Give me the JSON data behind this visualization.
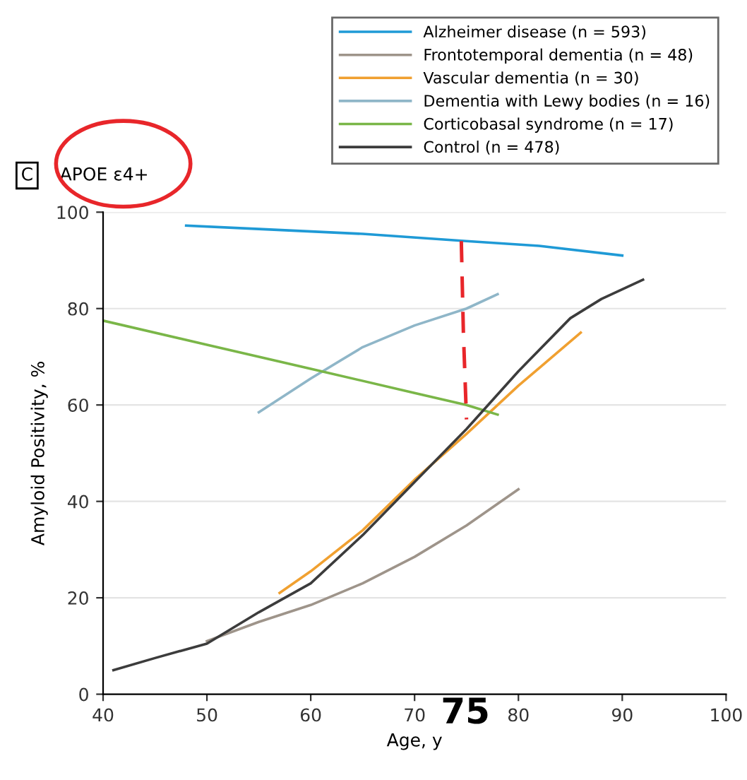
{
  "chart_data": {
    "type": "line",
    "title": "APOE ε4+",
    "xlabel": "Age, y",
    "ylabel": "Amyloid Positivity, %",
    "xlim": [
      40,
      100
    ],
    "xticks": [
      40,
      50,
      60,
      70,
      80,
      90,
      100
    ],
    "ylim": [
      0,
      100
    ],
    "yticks": [
      0,
      20,
      40,
      60,
      80,
      100
    ],
    "grid": "y",
    "legend": "top right",
    "line_style": "solid",
    "marker": "none",
    "annotations": [
      "C",
      "75"
    ],
    "series": [
      {
        "name": "Alzheimer disease (n = 593)",
        "color": "#1f9ad6",
        "x": [
          48,
          55,
          65,
          75,
          82,
          90
        ],
        "values": [
          97.2,
          96.5,
          95.5,
          94,
          93,
          91
        ]
      },
      {
        "name": "Frontotemporal dementia (n = 48)",
        "color": "#9e948a",
        "x": [
          50,
          55,
          60,
          65,
          70,
          75,
          80
        ],
        "values": [
          11,
          15,
          18.5,
          23,
          28.5,
          35,
          42.5
        ]
      },
      {
        "name": "Vascular dementia (n = 30)",
        "color": "#f0a030",
        "x": [
          57,
          60,
          65,
          70,
          75,
          80,
          86
        ],
        "values": [
          21,
          25.5,
          34,
          44.5,
          54,
          64,
          75
        ]
      },
      {
        "name": "Dementia with Lewy bodies (n = 16)",
        "color": "#8fb6c8",
        "x": [
          55,
          60,
          65,
          70,
          75,
          78
        ],
        "values": [
          58.5,
          65.5,
          72,
          76.5,
          80,
          83
        ]
      },
      {
        "name": "Corticobasal syndrome (n = 17)",
        "color": "#7ab648",
        "x": [
          40,
          50,
          60,
          70,
          75,
          78
        ],
        "values": [
          77.5,
          72.5,
          67.5,
          62.5,
          60,
          58
        ]
      },
      {
        "name": "Control (n = 478)",
        "color": "#3c3c3c",
        "x": [
          41,
          45,
          50,
          55,
          60,
          65,
          70,
          75,
          80,
          85,
          88,
          92
        ],
        "values": [
          5,
          7.5,
          10.5,
          17,
          23,
          33,
          44,
          55,
          67,
          78,
          82,
          86
        ]
      },
      {
        "color": "#e8262a",
        "line_style": "dashed",
        "x": [
          74.5,
          74.7,
          75
        ],
        "values": [
          94,
          75,
          57
        ]
      }
    ]
  }
}
